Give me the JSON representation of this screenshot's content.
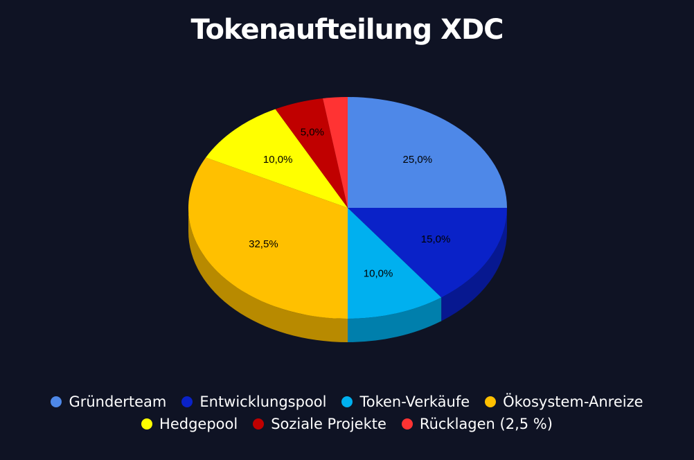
{
  "chart_data": {
    "type": "pie",
    "title": "Tokenaufteilung XDC",
    "slices": [
      {
        "label": "Gründerteam",
        "value": 25.0,
        "display": "25,0%",
        "color": "#4e88e8"
      },
      {
        "label": "Entwicklungspool",
        "value": 15.0,
        "display": "15,0%",
        "color": "#0a22c8"
      },
      {
        "label": "Token-Verkäufe",
        "value": 10.0,
        "display": "10,0%",
        "color": "#00b0ef"
      },
      {
        "label": "Ökosystem-Anreize",
        "value": 32.5,
        "display": "32,5%",
        "color": "#ffc000"
      },
      {
        "label": "Hedgepool",
        "value": 10.0,
        "display": "10,0%",
        "color": "#ffff00"
      },
      {
        "label": "Soziale Projekte",
        "value": 5.0,
        "display": "5,0%",
        "color": "#c00000"
      },
      {
        "label": "Rücklagen (2,5 %)",
        "value": 2.5,
        "display": "",
        "color": "#ff3333"
      }
    ],
    "legend_position": "bottom",
    "style": "3d"
  }
}
